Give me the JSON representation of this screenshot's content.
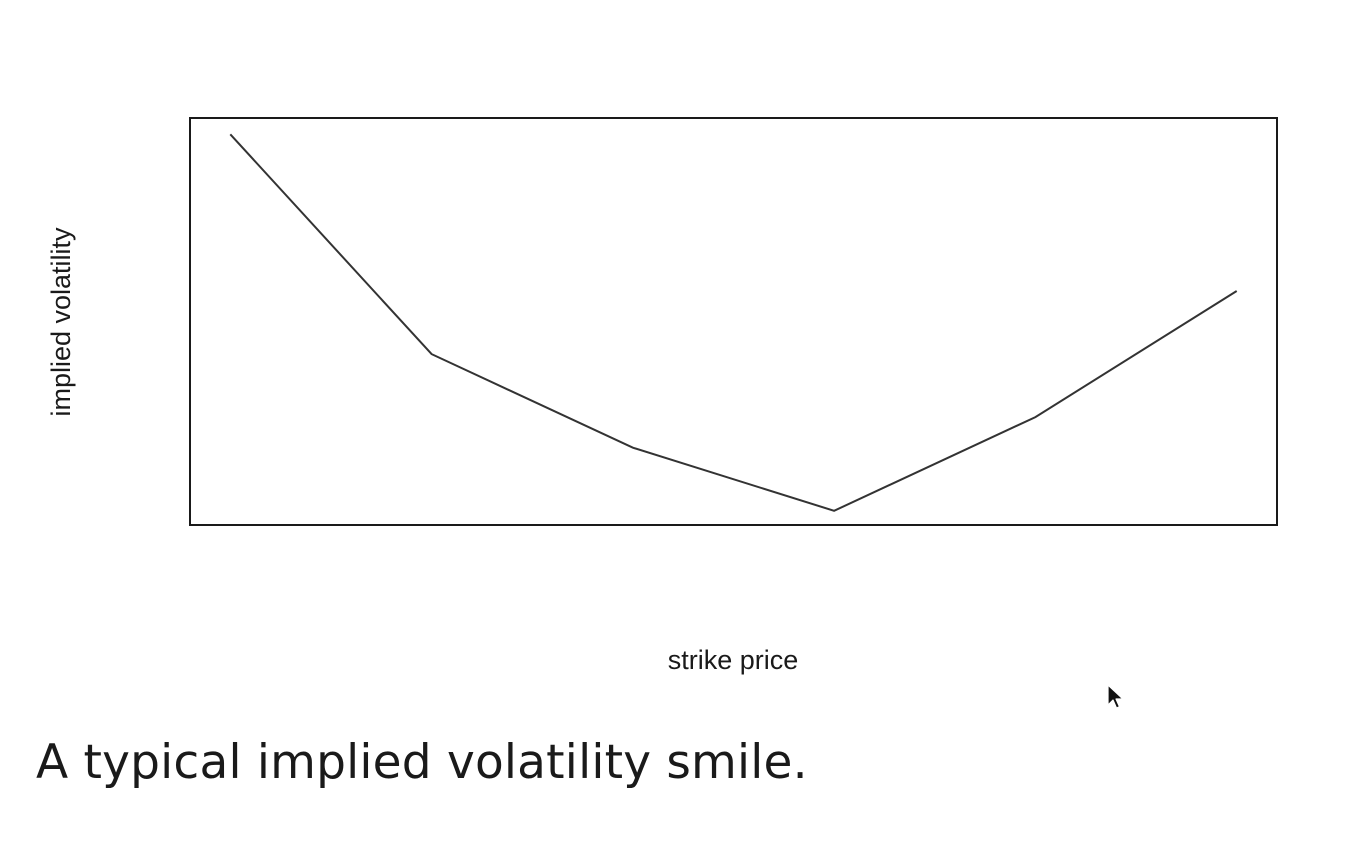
{
  "slide": {
    "caption": "A typical implied volatility smile."
  },
  "chart_data": {
    "type": "line",
    "title": "",
    "xlabel": "strike price",
    "ylabel": "implied volatility",
    "x": [
      1,
      2,
      3,
      4,
      5,
      6
    ],
    "values": [
      0.96,
      0.42,
      0.19,
      0.035,
      0.265,
      0.575
    ],
    "xlim": [
      0.8,
      6.2
    ],
    "ylim": [
      0,
      1
    ],
    "ticks_shown": false,
    "grid": false,
    "legend": "none",
    "line_color": "#333333",
    "frame_color": "#1a1a1a"
  }
}
